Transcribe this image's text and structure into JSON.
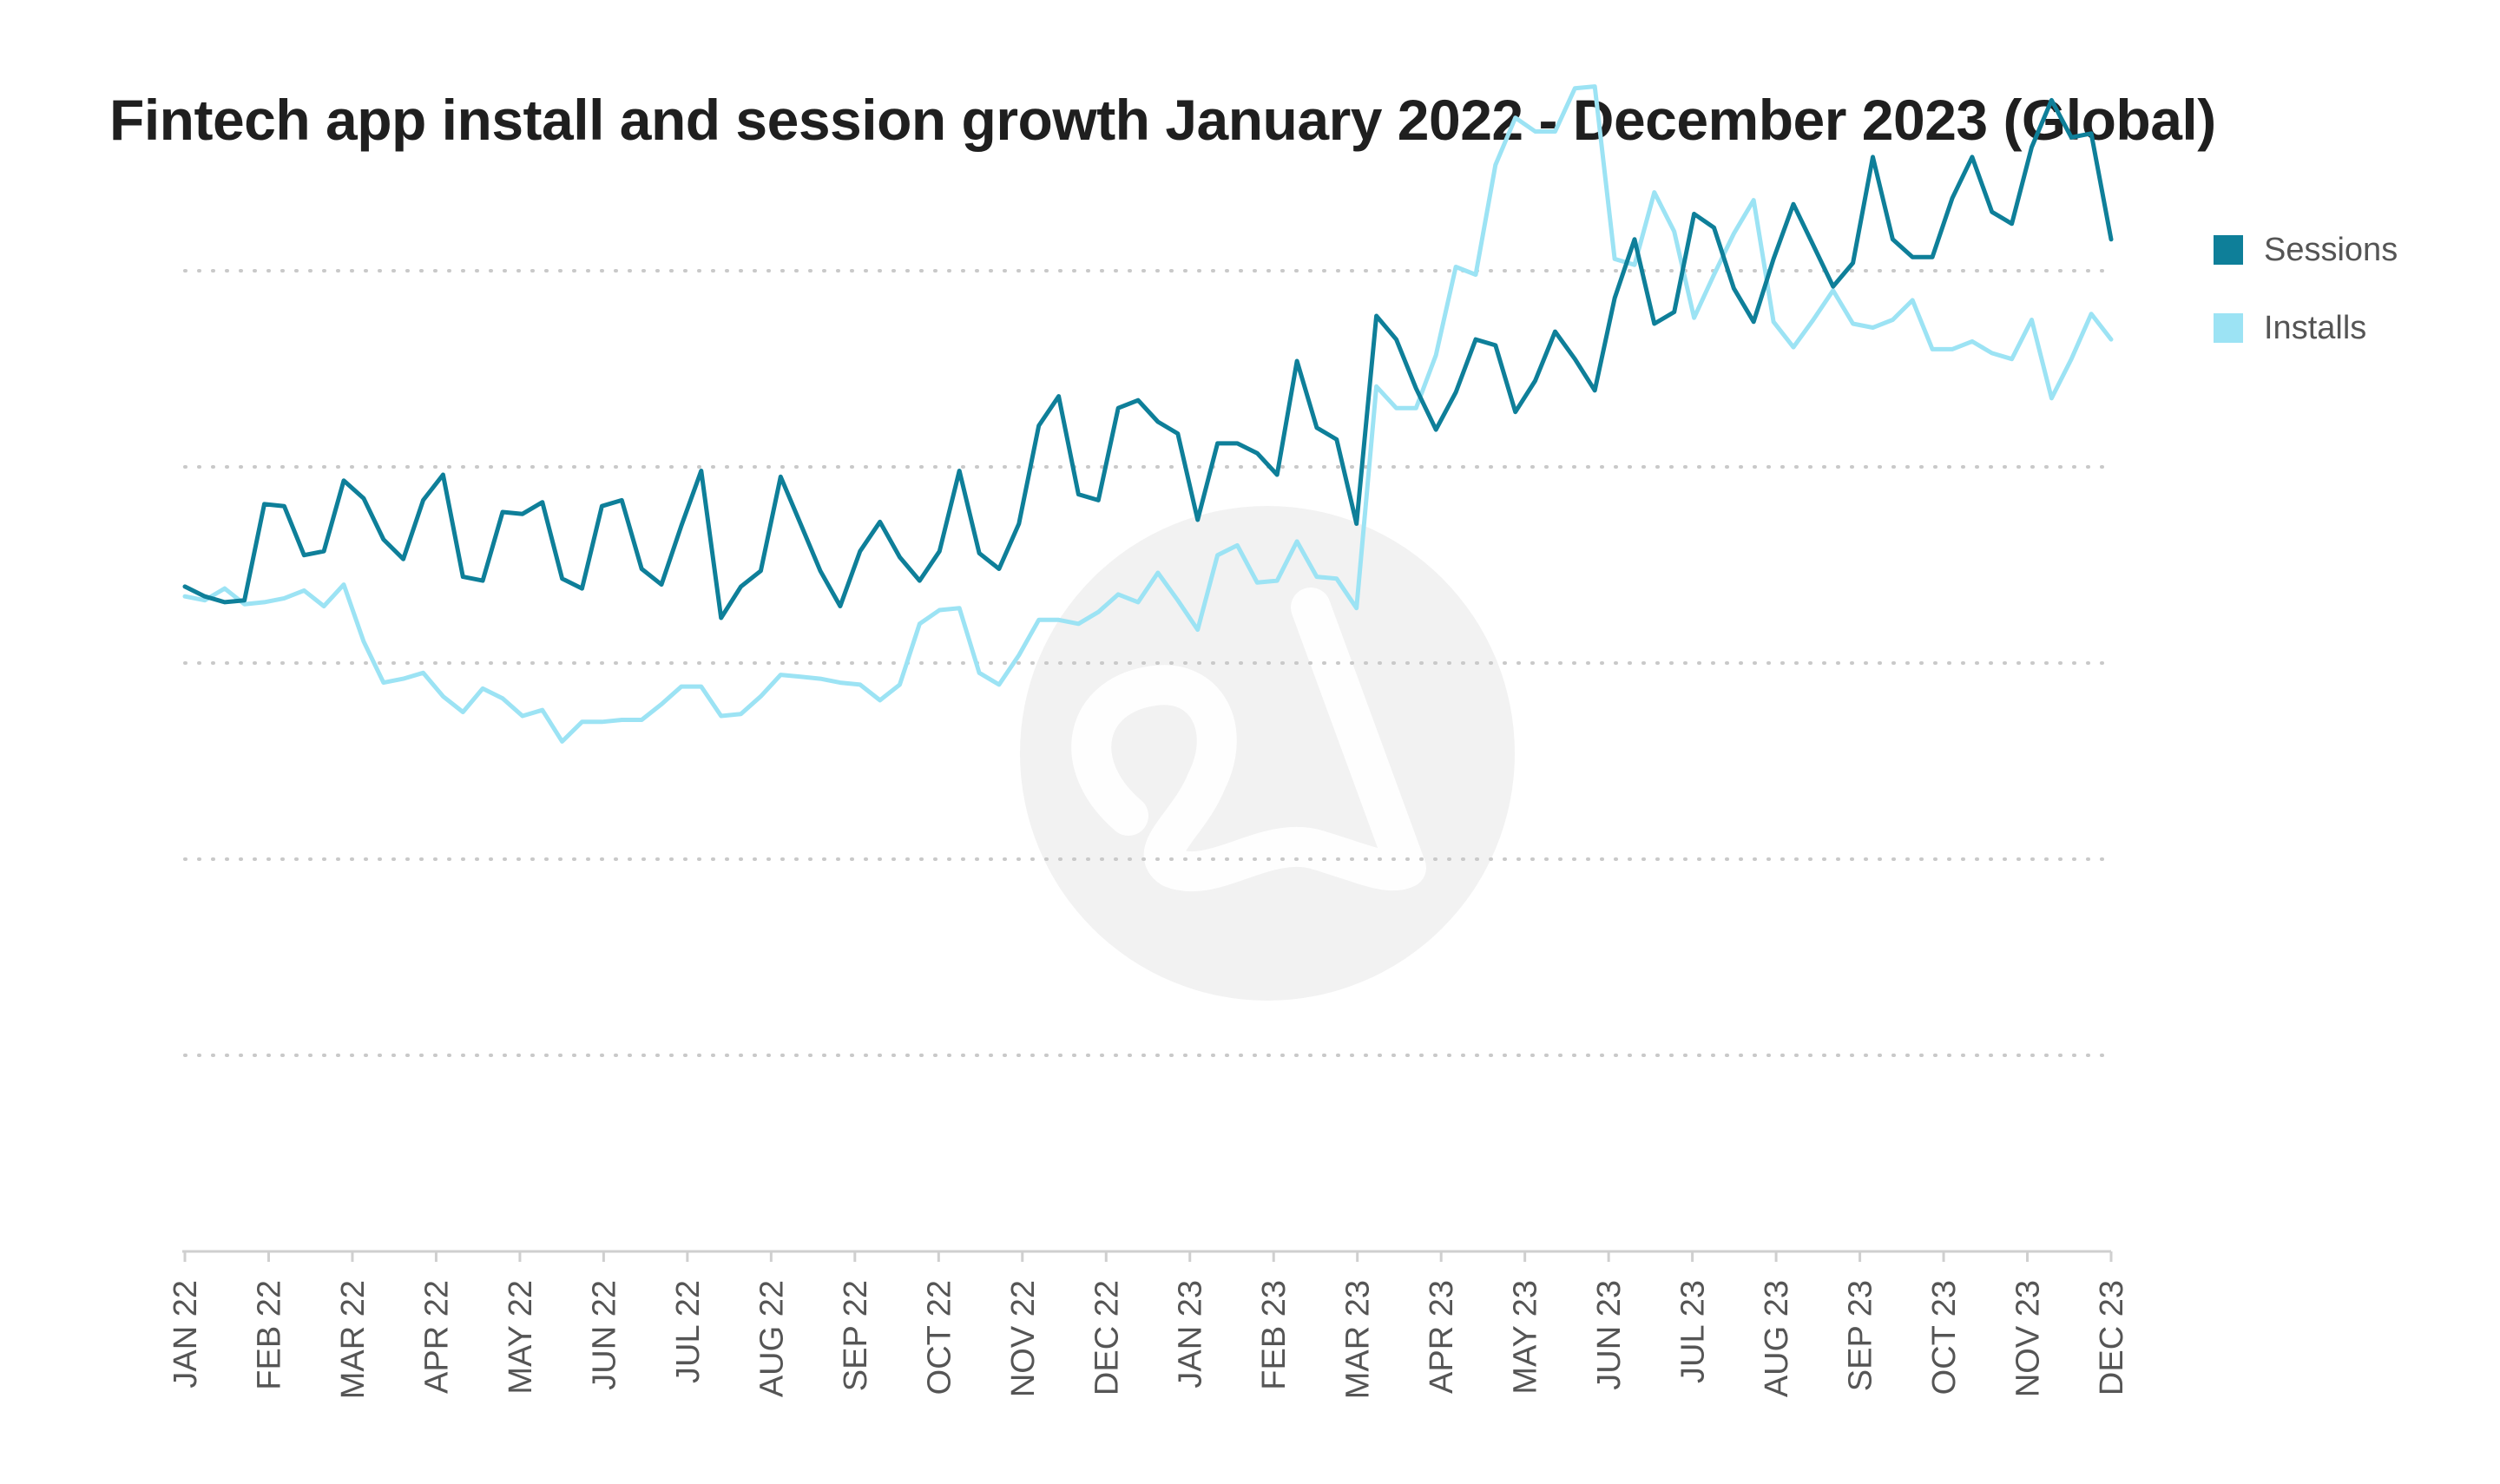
{
  "title": "Fintech app install and session growth January 2022 - December 2023 (Global)",
  "legend": {
    "sessions_label": "Sessions",
    "installs_label": "Installs"
  },
  "colors": {
    "sessions": "#0e7f99",
    "installs": "#9ce3f4",
    "grid": "#c9c9c9",
    "axis": "#cfcfcf",
    "tick_label": "#555555",
    "watermark": "#f2f2f2"
  },
  "chart_data": {
    "type": "line",
    "title": "Fintech app install and session growth January 2022 - December 2023 (Global)",
    "xlabel": "",
    "ylabel": "",
    "x_tick_labels": [
      "JAN 22",
      "FEB 22",
      "MAR 22",
      "APR 22",
      "MAY 22",
      "JUN 22",
      "JUL 22",
      "AUG 22",
      "SEP 22",
      "OCT 22",
      "NOV 22",
      "DEC 22",
      "JAN 23",
      "FEB 23",
      "MAR 23",
      "APR 23",
      "MAY 23",
      "JUN 23",
      "JUL 23",
      "AUG 23",
      "SEP 23",
      "OCT 23",
      "NOV 23",
      "DEC 23"
    ],
    "x_range": [
      "2022-01",
      "2023-12"
    ],
    "y_axis_labels_shown": false,
    "grid": "horizontal dotted",
    "legend_position": "top-right",
    "series": [
      {
        "name": "Sessions",
        "values": [
          3.39,
          3.34,
          3.31,
          3.32,
          3.81,
          3.8,
          3.55,
          3.57,
          3.93,
          3.84,
          3.63,
          3.53,
          3.83,
          3.96,
          3.44,
          3.42,
          3.77,
          3.76,
          3.82,
          3.43,
          3.38,
          3.8,
          3.83,
          3.48,
          3.4,
          3.7,
          3.98,
          3.23,
          3.39,
          3.47,
          3.95,
          3.71,
          3.47,
          3.29,
          3.57,
          3.72,
          3.54,
          3.42,
          3.57,
          3.98,
          3.56,
          3.48,
          3.71,
          4.21,
          4.36,
          3.86,
          3.83,
          4.3,
          4.34,
          4.23,
          4.17,
          3.73,
          4.12,
          4.12,
          4.07,
          3.96,
          4.54,
          4.2,
          4.14,
          3.71,
          4.77,
          4.65,
          4.4,
          4.19,
          4.38,
          4.65,
          4.62,
          4.28,
          4.44,
          4.69,
          4.55,
          4.39,
          4.86,
          5.16,
          4.73,
          4.79,
          5.29,
          5.22,
          4.91,
          4.74,
          5.06,
          5.34,
          5.13,
          4.92,
          5.04,
          5.58,
          5.16,
          5.07,
          5.07,
          5.37,
          5.58,
          5.3,
          5.24,
          5.63,
          5.87,
          5.68,
          5.7,
          5.16
        ]
      },
      {
        "name": "Installs",
        "values": [
          3.34,
          3.32,
          3.38,
          3.3,
          3.31,
          3.33,
          3.37,
          3.29,
          3.4,
          3.11,
          2.9,
          2.92,
          2.95,
          2.83,
          2.75,
          2.87,
          2.82,
          2.73,
          2.76,
          2.6,
          2.7,
          2.7,
          2.71,
          2.71,
          2.79,
          2.88,
          2.88,
          2.73,
          2.74,
          2.83,
          2.94,
          2.93,
          2.92,
          2.9,
          2.89,
          2.81,
          2.89,
          3.2,
          3.27,
          3.28,
          2.95,
          2.89,
          3.04,
          3.22,
          3.22,
          3.2,
          3.26,
          3.35,
          3.31,
          3.46,
          3.32,
          3.17,
          3.55,
          3.6,
          3.41,
          3.42,
          3.62,
          3.44,
          3.43,
          3.28,
          4.41,
          4.3,
          4.3,
          4.57,
          5.02,
          4.98,
          5.54,
          5.78,
          5.71,
          5.71,
          5.93,
          5.94,
          5.06,
          5.03,
          5.4,
          5.2,
          4.76,
          4.98,
          5.19,
          5.36,
          4.74,
          4.61,
          4.75,
          4.9,
          4.73,
          4.71,
          4.75,
          4.85,
          4.6,
          4.6,
          4.64,
          4.58,
          4.55,
          4.75,
          4.35,
          4.55,
          4.78,
          4.65
        ]
      }
    ]
  }
}
